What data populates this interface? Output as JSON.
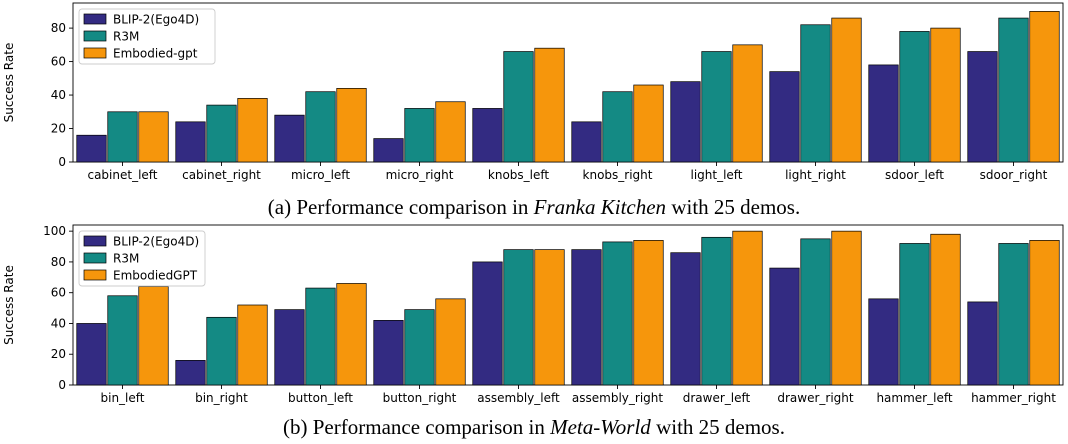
{
  "colors": {
    "blip": "#332b82",
    "r3m": "#148a84",
    "emb": "#f6960c"
  },
  "chart_data": [
    {
      "type": "bar",
      "caption_prefix": "(a) Performance comparison in ",
      "caption_italic": "Franka Kitchen",
      "caption_suffix": " with 25 demos.",
      "xlabel": "",
      "ylabel": "Success Rate",
      "ylim": [
        0,
        95
      ],
      "yticks": [
        0,
        20,
        40,
        60,
        80
      ],
      "grid": false,
      "legend_position": "top-left",
      "categories": [
        "cabinet_left",
        "cabinet_right",
        "micro_left",
        "micro_right",
        "knobs_left",
        "knobs_right",
        "light_left",
        "light_right",
        "sdoor_left",
        "sdoor_right"
      ],
      "series": [
        {
          "name": "BLIP-2(Ego4D)",
          "values": [
            16,
            24,
            28,
            14,
            32,
            24,
            48,
            54,
            58,
            66
          ]
        },
        {
          "name": "R3M",
          "values": [
            30,
            34,
            42,
            32,
            66,
            42,
            66,
            82,
            78,
            86
          ]
        },
        {
          "name": "Embodied-gpt",
          "values": [
            30,
            38,
            44,
            36,
            68,
            46,
            70,
            86,
            80,
            90
          ]
        }
      ]
    },
    {
      "type": "bar",
      "caption_prefix": "(b) Performance comparison in ",
      "caption_italic": "Meta-World",
      "caption_suffix": " with 25 demos.",
      "xlabel": "",
      "ylabel": "Success Rate",
      "ylim": [
        0,
        104
      ],
      "yticks": [
        0,
        20,
        40,
        60,
        80,
        100
      ],
      "grid": false,
      "legend_position": "top-left",
      "categories": [
        "bin_left",
        "bin_right",
        "button_left",
        "button_right",
        "assembly_left",
        "assembly_right",
        "drawer_left",
        "drawer_right",
        "hammer_left",
        "hammer_right"
      ],
      "series": [
        {
          "name": "BLIP-2(Ego4D)",
          "values": [
            40,
            16,
            49,
            42,
            80,
            88,
            86,
            76,
            56,
            54
          ]
        },
        {
          "name": "R3M",
          "values": [
            58,
            44,
            63,
            49,
            88,
            93,
            96,
            95,
            92,
            92
          ]
        },
        {
          "name": "EmbodiedGPT",
          "values": [
            64,
            52,
            66,
            56,
            88,
            94,
            100,
            100,
            98,
            94
          ]
        }
      ]
    }
  ]
}
